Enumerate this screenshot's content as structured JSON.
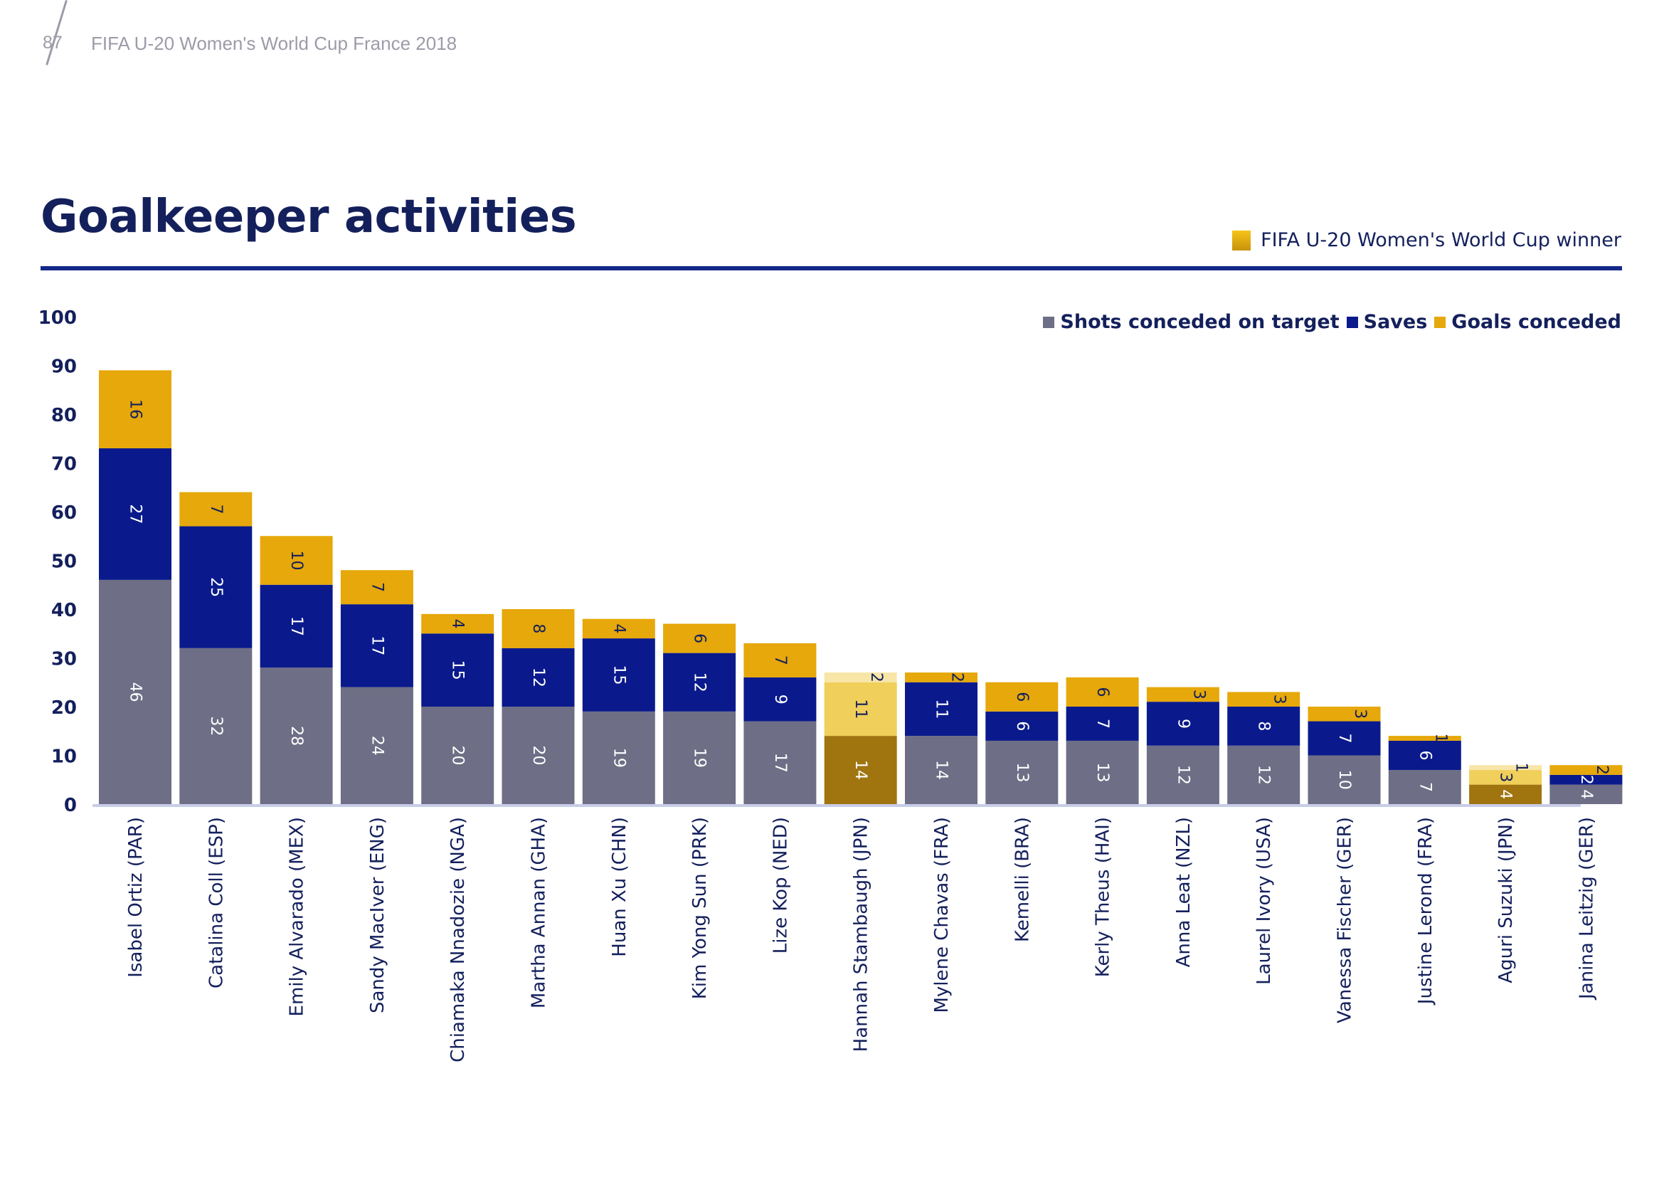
{
  "header": {
    "page_number": "87",
    "subtitle": "FIFA U-20 Women's World Cup France 2018"
  },
  "page_title": "Goalkeeper activities",
  "winner_legend": {
    "label": "FIFA U-20 Women's World Cup winner",
    "color": "#e0a812"
  },
  "colors": {
    "shots": "#6e6e86",
    "saves": "#0a1a8c",
    "goals": "#e6a80a",
    "winner_shots": "#a07510",
    "winner_saves": "#f0cf5a",
    "winner_goals": "#f7e6a8",
    "axis": "#c8cde8",
    "text_dark": "#14205c"
  },
  "chart_data": {
    "type": "bar",
    "stacked": true,
    "ylim": [
      0,
      100
    ],
    "yticks": [
      0,
      10,
      20,
      30,
      40,
      50,
      60,
      70,
      80,
      90,
      100
    ],
    "legend": "top-right",
    "categories": [
      "Isabel Ortiz (PAR)",
      "Catalina Coll (ESP)",
      "Emily Alvarado (MEX)",
      "Sandy MacIver (ENG)",
      "Chiamaka Nnadozie (NGA)",
      "Martha Annan (GHA)",
      "Huan Xu (CHN)",
      "Kim Yong Sun (PRK)",
      "Lize Kop (NED)",
      "Hannah Stambaugh (JPN)",
      "Mylene Chavas (FRA)",
      "Kemelli (BRA)",
      "Kerly Theus (HAI)",
      "Anna Leat (NZL)",
      "Laurel Ivory (USA)",
      "Vanessa Fischer (GER)",
      "Justine Lerond (FRA)",
      "Aguri Suzuki (JPN)",
      "Janina Leitzig (GER)"
    ],
    "winners": [
      false,
      false,
      false,
      false,
      false,
      false,
      false,
      false,
      false,
      true,
      false,
      false,
      false,
      false,
      false,
      false,
      false,
      true,
      false
    ],
    "series": [
      {
        "name": "Shots conceded on target",
        "values": [
          46,
          32,
          28,
          24,
          20,
          20,
          19,
          19,
          17,
          14,
          14,
          13,
          13,
          12,
          12,
          10,
          7,
          4,
          4
        ]
      },
      {
        "name": "Saves",
        "values": [
          27,
          25,
          17,
          17,
          15,
          12,
          15,
          12,
          9,
          11,
          11,
          6,
          7,
          9,
          8,
          7,
          6,
          3,
          2
        ]
      },
      {
        "name": "Goals conceded",
        "values": [
          16,
          7,
          10,
          7,
          4,
          8,
          4,
          6,
          7,
          2,
          2,
          6,
          6,
          3,
          3,
          3,
          1,
          1,
          2
        ]
      }
    ]
  }
}
